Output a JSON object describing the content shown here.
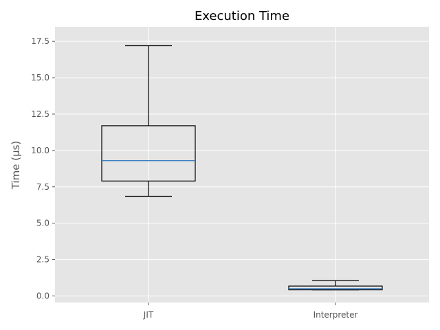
{
  "chart_data": {
    "type": "box",
    "title": "Execution Time",
    "xlabel": "",
    "ylabel": "Time (µs)",
    "ylim": [
      -0.45,
      18.5
    ],
    "yticks": [
      0.0,
      2.5,
      5.0,
      7.5,
      10.0,
      12.5,
      15.0,
      17.5
    ],
    "ytick_labels": [
      "0.0",
      "2.5",
      "5.0",
      "7.5",
      "10.0",
      "12.5",
      "15.0",
      "17.5"
    ],
    "grid": true,
    "categories": [
      "JIT",
      "Interpreter"
    ],
    "boxes": [
      {
        "category": "JIT",
        "whisker_low": 6.85,
        "q1": 7.9,
        "median": 9.3,
        "q3": 11.7,
        "whisker_high": 17.2
      },
      {
        "category": "Interpreter",
        "whisker_low": 0.42,
        "q1": 0.42,
        "median": 0.5,
        "q3": 0.68,
        "whisker_high": 1.05
      }
    ],
    "colors": {
      "background": "#e5e5e5",
      "grid": "#ffffff",
      "box": "#000000",
      "median": "#3a7ebf"
    }
  }
}
